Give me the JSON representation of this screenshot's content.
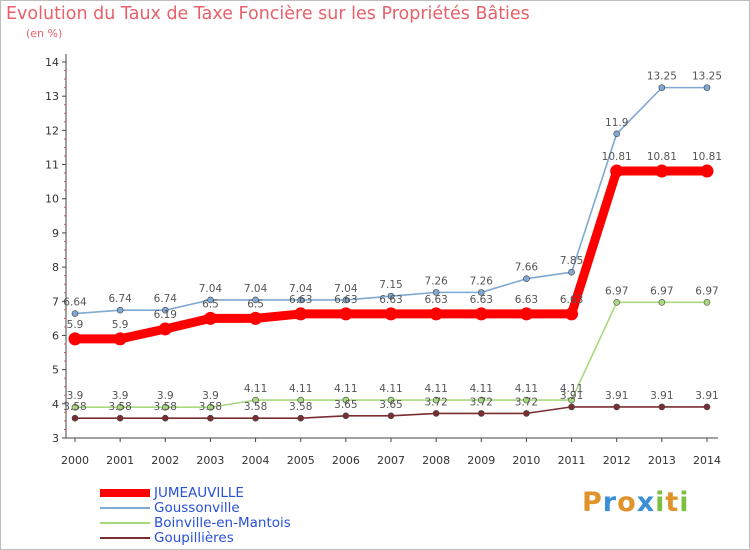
{
  "chart_data": {
    "type": "line",
    "title": "Evolution du Taux de Taxe Foncière sur les Propriétés Bâties",
    "ylabel": "(en %)",
    "xlabel": "",
    "x": [
      "2000",
      "2001",
      "2002",
      "2003",
      "2004",
      "2005",
      "2006",
      "2007",
      "2008",
      "2009",
      "2010",
      "2011",
      "2012",
      "2013",
      "2014"
    ],
    "ylim": [
      3,
      14
    ],
    "yticks": [
      "3",
      "4",
      "5",
      "6",
      "7",
      "8",
      "9",
      "10",
      "11",
      "12",
      "13",
      "14"
    ],
    "series": [
      {
        "name": "Goupillières",
        "color": "#7a2e31",
        "highlight": false,
        "values": [
          3.58,
          3.58,
          3.58,
          3.58,
          3.58,
          3.58,
          3.65,
          3.65,
          3.72,
          3.72,
          3.72,
          3.91,
          3.91,
          3.91,
          3.91
        ],
        "labels": [
          "3.58",
          "3.58",
          "3.58",
          "3.58",
          "3.58",
          "3.58",
          "3.65",
          "3.65",
          "3.72",
          "3.72",
          "3.72",
          "3.91",
          "3.91",
          "3.91",
          "3.91"
        ]
      },
      {
        "name": "Boinville-en-Mantois",
        "color": "#a8d97f",
        "highlight": false,
        "values": [
          3.9,
          3.9,
          3.9,
          3.9,
          4.11,
          4.11,
          4.11,
          4.11,
          4.11,
          4.11,
          4.11,
          4.11,
          6.97,
          6.97,
          6.97
        ],
        "labels": [
          "3.9",
          "3.9",
          "3.9",
          "3.9",
          "4.11",
          "4.11",
          "4.11",
          "4.11",
          "4.11",
          "4.11",
          "4.11",
          "4.11",
          "6.97",
          "6.97",
          "6.97"
        ]
      },
      {
        "name": "Goussonville",
        "color": "#7fa8d4",
        "highlight": false,
        "values": [
          6.64,
          6.74,
          6.74,
          7.04,
          7.04,
          7.04,
          7.04,
          7.15,
          7.26,
          7.26,
          7.66,
          7.85,
          11.9,
          13.25,
          13.25
        ],
        "labels": [
          "6.64",
          "6.74",
          "6.74",
          "7.04",
          "7.04",
          "7.04",
          "7.04",
          "7.15",
          "7.26",
          "7.26",
          "7.66",
          "7.85",
          "11.9",
          "13.25",
          "13.25"
        ]
      },
      {
        "name": "JUMEAUVILLE",
        "color": "#ff0000",
        "highlight": true,
        "values": [
          5.9,
          5.9,
          6.19,
          6.5,
          6.5,
          6.63,
          6.63,
          6.63,
          6.63,
          6.63,
          6.63,
          6.63,
          10.81,
          10.81,
          10.81
        ],
        "labels": [
          "5.9",
          "5.9",
          "6.19",
          "6.5",
          "6.5",
          "6.63",
          "6.63",
          "6.63",
          "6.63",
          "6.63",
          "6.63",
          "6.63",
          "10.81",
          "10.81",
          "10.81"
        ]
      }
    ],
    "legend": [
      "JUMEAUVILLE",
      "Goussonville",
      "Boinville-en-Mantois",
      "Goupillières"
    ],
    "legend_placement": "bottom-left",
    "grid": false
  },
  "brand": {
    "letters": [
      "P",
      "r",
      "o",
      "x",
      "i",
      "t",
      "i"
    ],
    "colors": [
      "#e0932a",
      "#3a8fd8",
      "#e0932a",
      "#3a8fd8",
      "#7cc043",
      "#e0932a",
      "#7cc043"
    ]
  },
  "colors": {
    "title": "#e8606a",
    "axis": "#555555"
  }
}
